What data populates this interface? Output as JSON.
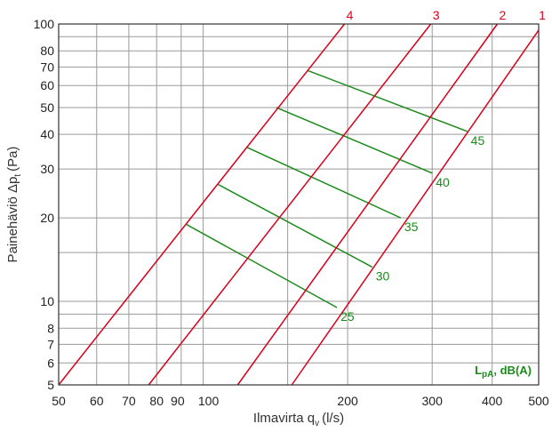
{
  "chart_data": {
    "type": "line",
    "x_scale": "log",
    "y_scale": "log",
    "xlim": [
      50,
      500
    ],
    "ylim": [
      5,
      100
    ],
    "grid": true,
    "xlabel_main": "Ilmavirta q",
    "xlabel_sub": "v",
    "xlabel_unit": "(l/s)",
    "ylabel_main": "Painehäviö Δp",
    "ylabel_sub": "t",
    "ylabel_unit": "(Pa)",
    "x_ticks": [
      {
        "value": 50,
        "label": "50"
      },
      {
        "value": 60,
        "label": "60"
      },
      {
        "value": 70,
        "label": "70"
      },
      {
        "value": 80,
        "label": "80"
      },
      {
        "value": 90,
        "label": "90"
      },
      {
        "value": 100,
        "label": "100"
      },
      {
        "value": 200,
        "label": "200"
      },
      {
        "value": 300,
        "label": "300"
      },
      {
        "value": 400,
        "label": "400"
      },
      {
        "value": 500,
        "label": "500"
      }
    ],
    "y_ticks": [
      {
        "value": 5,
        "label": "5"
      },
      {
        "value": 6,
        "label": "6"
      },
      {
        "value": 7,
        "label": "7"
      },
      {
        "value": 8,
        "label": "8"
      },
      {
        "value": 10,
        "label": "10"
      },
      {
        "value": 20,
        "label": "20"
      },
      {
        "value": 30,
        "label": "30"
      },
      {
        "value": 40,
        "label": "40"
      },
      {
        "value": 50,
        "label": "50"
      },
      {
        "value": 60,
        "label": "60"
      },
      {
        "value": 70,
        "label": "70"
      },
      {
        "value": 80,
        "label": "80"
      },
      {
        "value": 100,
        "label": "100"
      }
    ],
    "x_minor_grid": [
      50,
      60,
      70,
      80,
      90,
      100,
      150,
      200,
      300,
      400,
      500
    ],
    "y_minor_grid": [
      5,
      6,
      7,
      8,
      9,
      10,
      15,
      20,
      30,
      40,
      50,
      60,
      70,
      80,
      90,
      100
    ],
    "red_color": "#d9001b",
    "green_color": "#1a8a1a",
    "series": [
      {
        "name": "1",
        "points": [
          [
            153,
            5
          ],
          [
            500,
            95
          ]
        ]
      },
      {
        "name": "2",
        "points": [
          [
            118,
            5
          ],
          [
            410,
            100
          ]
        ]
      },
      {
        "name": "3",
        "points": [
          [
            77,
            5
          ],
          [
            298,
            100
          ]
        ]
      },
      {
        "name": "4",
        "points": [
          [
            50,
            5
          ],
          [
            197,
            100
          ]
        ]
      }
    ],
    "db_lines": [
      {
        "name": "25",
        "points": [
          [
            92,
            19
          ],
          [
            190,
            9.5
          ]
        ]
      },
      {
        "name": "30",
        "points": [
          [
            107,
            26.5
          ],
          [
            225,
            13.3
          ]
        ]
      },
      {
        "name": "35",
        "points": [
          [
            123,
            36
          ],
          [
            258,
            20
          ]
        ]
      },
      {
        "name": "40",
        "points": [
          [
            142,
            50
          ],
          [
            300,
            29
          ]
        ]
      },
      {
        "name": "45",
        "points": [
          [
            165,
            68
          ],
          [
            355,
            41
          ]
        ]
      }
    ],
    "legend_note_main": "L",
    "legend_note_sub": "pA",
    "legend_note_rest": ", dB(A)"
  }
}
